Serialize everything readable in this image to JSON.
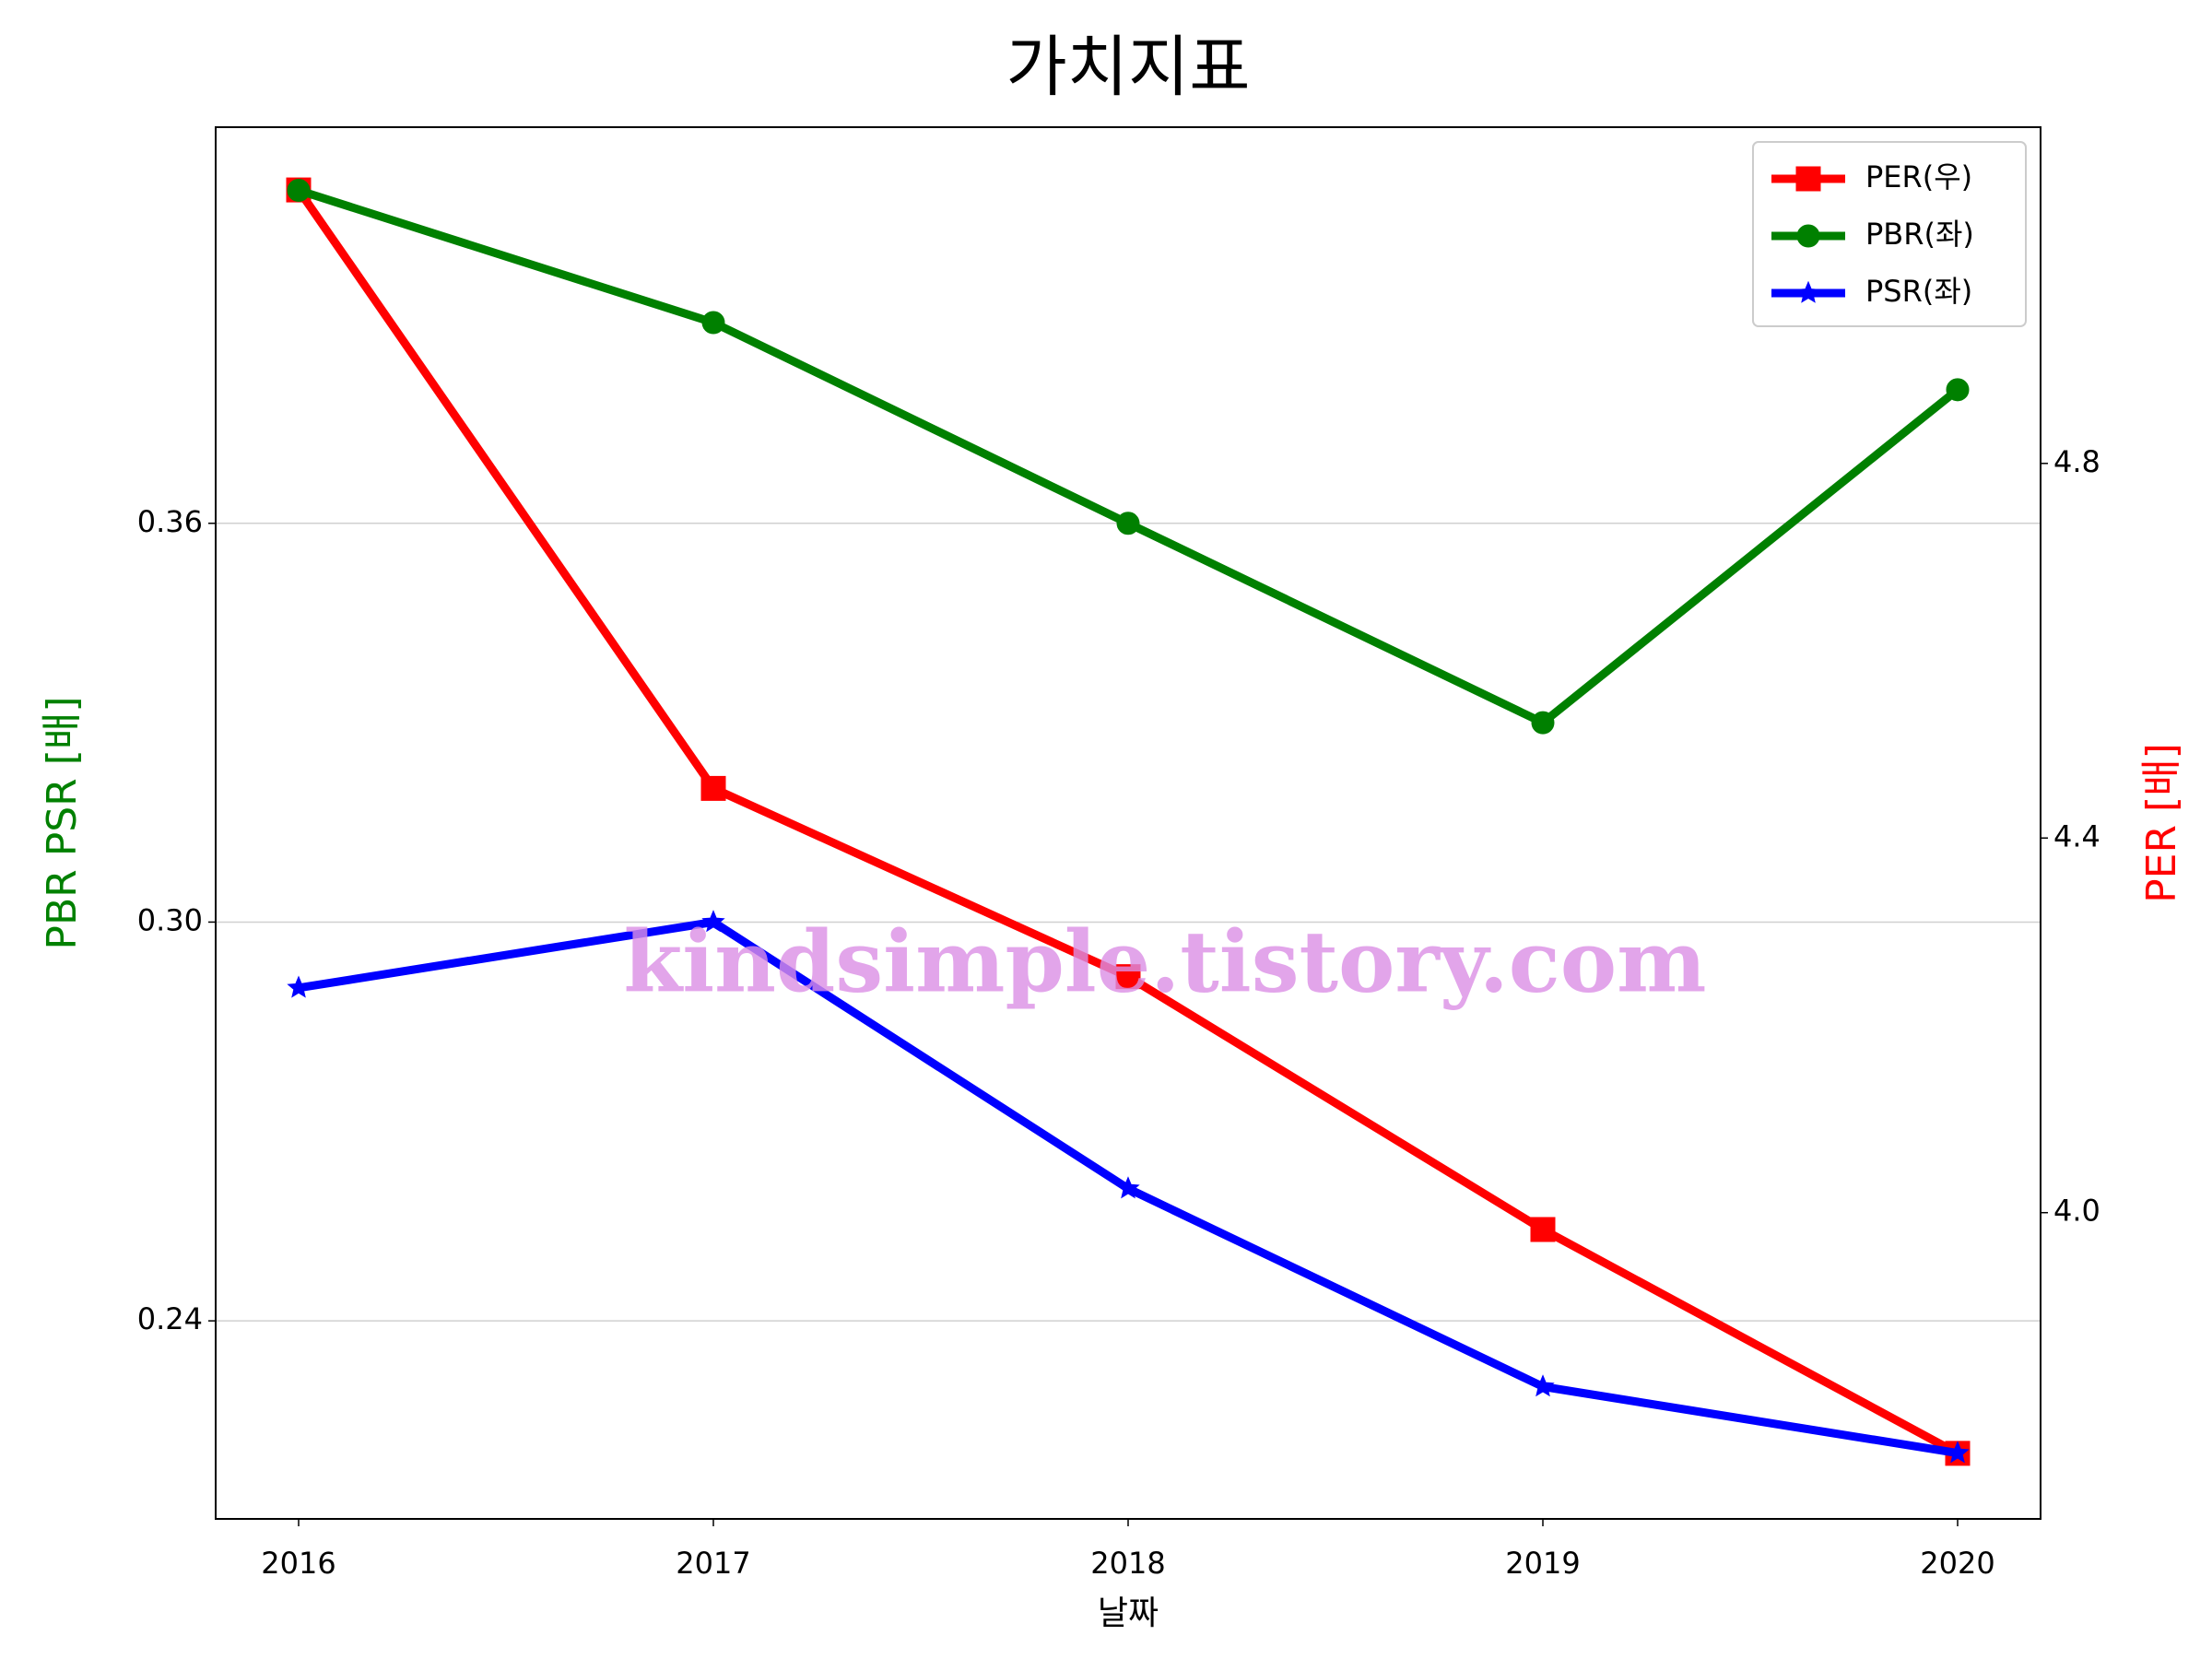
{
  "chart_data": {
    "type": "line",
    "title": "가치지표",
    "x_label": "날짜",
    "y_label": "PBR PSR [배]",
    "y2_label": "PER [배]",
    "x": [
      2016,
      2017,
      2018,
      2019,
      2020
    ],
    "xlim": [
      2015.8,
      2020.2
    ],
    "xticks": [
      2016,
      2017,
      2018,
      2019,
      2020
    ],
    "ylim": [
      0.2102,
      0.4196
    ],
    "yticks": [
      0.24,
      0.3,
      0.36
    ],
    "y2lim": [
      3.673,
      5.159
    ],
    "y2ticks": [
      4.0,
      4.4,
      4.8
    ],
    "grid": true,
    "legend": "upper right",
    "y_label_color": "#008000",
    "y2_label_color": "#ff0000",
    "series": [
      {
        "name": "PER(우)",
        "color": "#ff0000",
        "marker": "square",
        "axis": "y2",
        "values": [
          5.092,
          4.453,
          4.252,
          3.982,
          3.743
        ]
      },
      {
        "name": "PBR(좌)",
        "color": "#008000",
        "marker": "circle",
        "values": [
          0.4101,
          0.3902,
          0.36,
          0.33,
          0.3801
        ]
      },
      {
        "name": "PSR(좌)",
        "color": "#0000ff",
        "marker": "star",
        "values": [
          0.2901,
          0.3,
          0.2599,
          0.2301,
          0.2201
        ]
      }
    ],
    "watermark": "kindsimple.tistory.com"
  }
}
